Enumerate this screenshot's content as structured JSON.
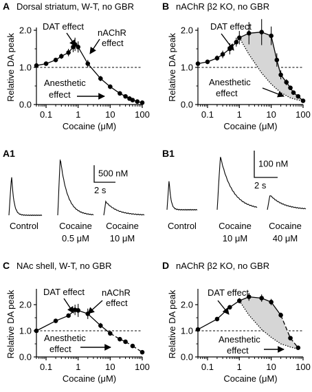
{
  "chart_data": [
    {
      "id": "A",
      "type": "line",
      "panel_label": "A",
      "title": "Dorsal striatum, W-T, no GBR",
      "xlabel": "Cocaine (μM)",
      "ylabel": "Relative DA peak",
      "x_scale": "log",
      "xlim": [
        0.05,
        100
      ],
      "ylim": [
        0,
        2.0
      ],
      "x_ticks": [
        0.1,
        1,
        10,
        100
      ],
      "x_tick_labels": [
        "0.1",
        "1",
        "10",
        "100"
      ],
      "y_ticks": [
        0,
        1.0,
        2.0
      ],
      "y_tick_labels": [
        "0.0",
        "1.0",
        "2.0"
      ],
      "reference_line": 1.0,
      "series": [
        {
          "x": [
            0.05,
            0.1,
            0.2,
            0.3,
            0.5,
            0.7,
            0.8,
            1,
            2,
            5,
            10,
            20,
            30,
            40,
            50,
            70,
            100
          ],
          "y": [
            1.05,
            1.1,
            1.2,
            1.3,
            1.4,
            1.55,
            1.62,
            1.55,
            1.1,
            0.7,
            0.48,
            0.3,
            0.22,
            0.16,
            0.12,
            0.08,
            0.05
          ],
          "err": [
            0.04,
            0.05,
            0.06,
            0.07,
            0.1,
            0.14,
            0.18,
            0.15,
            0.1,
            0.07,
            0.06,
            0.04,
            0.03,
            0.03,
            0.02,
            0.02,
            0.02
          ]
        }
      ],
      "annotations": [
        "DAT effect",
        "nAChR effect",
        "Anesthetic effect"
      ]
    },
    {
      "id": "B",
      "type": "line",
      "panel_label": "B",
      "title": "nAChR β2 KO, no GBR",
      "xlabel": "Cocaine (μM)",
      "ylabel": "Relative DA peak",
      "x_scale": "log",
      "xlim": [
        0.05,
        100
      ],
      "ylim": [
        0,
        2.0
      ],
      "x_ticks": [
        0.1,
        1,
        10,
        100
      ],
      "x_tick_labels": [
        "0.1",
        "1",
        "10",
        "100"
      ],
      "y_ticks": [
        0,
        1.0,
        2.0
      ],
      "y_tick_labels": [
        "0.0",
        "1.0",
        "2.0"
      ],
      "reference_line": 1.0,
      "series": [
        {
          "x": [
            0.05,
            0.1,
            0.2,
            0.3,
            0.5,
            0.8,
            1,
            2,
            5,
            10,
            15,
            20,
            30,
            40,
            50,
            70,
            100
          ],
          "y": [
            1.1,
            1.15,
            1.25,
            1.35,
            1.5,
            1.68,
            1.8,
            1.92,
            1.95,
            1.85,
            1.2,
            0.8,
            0.6,
            0.45,
            0.32,
            0.22,
            0.1
          ],
          "err": [
            0.05,
            0.06,
            0.07,
            0.1,
            0.15,
            0.12,
            0.18,
            0.3,
            0.35,
            0.25,
            0.18,
            0.12,
            0.08,
            0.06,
            0.05,
            0.04,
            0.03
          ]
        }
      ],
      "shaded_lower_bound": {
        "x": [
          1,
          2,
          5,
          10,
          20,
          40,
          70,
          100
        ],
        "y": [
          1.8,
          1.35,
          0.85,
          0.55,
          0.32,
          0.18,
          0.12,
          0.1
        ]
      },
      "annotations": [
        "DAT effect",
        "Anesthetic effect"
      ]
    },
    {
      "id": "A1",
      "type": "line",
      "panel_label": "A1",
      "traces": [
        {
          "label": [
            "Control"
          ],
          "peak_nM": 1180
        },
        {
          "label": [
            "Cocaine",
            "0.5 μM"
          ],
          "peak_nM": 1700
        },
        {
          "label": [
            "Cocaine",
            "10 μM"
          ],
          "peak_nM": 400
        }
      ],
      "scale_bar": {
        "y_label": "500 nM",
        "x_label": "2 s"
      }
    },
    {
      "id": "B1",
      "type": "line",
      "panel_label": "B1",
      "traces": [
        {
          "label": [
            "Control"
          ],
          "peak_nM": 112
        },
        {
          "label": [
            "Cocaine",
            "10 μM"
          ],
          "peak_nM": 200
        },
        {
          "label": [
            "Cocaine",
            "40 μM"
          ],
          "peak_nM": 55
        }
      ],
      "scale_bar": {
        "y_label": "100 nM",
        "x_label": "2 s"
      }
    },
    {
      "id": "C",
      "type": "line",
      "panel_label": "C",
      "title": "NAc shell, W-T, no GBR",
      "xlabel": "Cocaine (μM)",
      "ylabel": "Relative DA peak",
      "x_scale": "log",
      "xlim": [
        0.05,
        100
      ],
      "ylim": [
        0,
        2.5
      ],
      "x_ticks": [
        0.1,
        1,
        10,
        100
      ],
      "x_tick_labels": [
        "0.1",
        "1",
        "10",
        "100"
      ],
      "y_ticks": [
        0,
        1.0,
        2.0
      ],
      "y_tick_labels": [
        "0.0",
        "1.0",
        "2.0"
      ],
      "reference_line": 1.0,
      "series": [
        {
          "x": [
            0.05,
            0.2,
            0.5,
            0.8,
            1,
            2,
            5,
            10,
            20,
            30,
            50,
            100
          ],
          "y": [
            1.0,
            1.38,
            1.58,
            1.8,
            1.78,
            1.65,
            1.2,
            0.9,
            0.68,
            0.58,
            0.42,
            0.18
          ],
          "err": [
            0.03,
            0.04,
            0.06,
            0.2,
            0.25,
            0.2,
            0.1,
            0.06,
            0.05,
            0.04,
            0.04,
            0.03
          ]
        }
      ],
      "annotations": [
        "DAT effect",
        "nAChR effect",
        "Anesthetic effect"
      ]
    },
    {
      "id": "D",
      "type": "line",
      "panel_label": "D",
      "title": "nAChR β2 KO, no GBR",
      "xlabel": "Cocaine (μM)",
      "ylabel": "Relative DA peak",
      "x_scale": "log",
      "xlim": [
        0.05,
        100
      ],
      "ylim": [
        0,
        2.5
      ],
      "x_ticks": [
        0.1,
        1,
        10,
        100
      ],
      "x_tick_labels": [
        "0.1",
        "1",
        "10",
        "100"
      ],
      "y_ticks": [
        0,
        1.0,
        2.0
      ],
      "y_tick_labels": [
        "0.0",
        "1.0",
        "2.0"
      ],
      "reference_line": 1.0,
      "series": [
        {
          "x": [
            0.05,
            0.2,
            0.5,
            1,
            2,
            5,
            10,
            20,
            40,
            70
          ],
          "y": [
            1.05,
            1.45,
            1.9,
            2.15,
            2.3,
            2.25,
            2.1,
            1.6,
            0.72,
            0.35
          ],
          "err": [
            0.05,
            0.05,
            0.08,
            0.1,
            0.15,
            0.14,
            0.12,
            0.1,
            0.06,
            0.04
          ]
        }
      ],
      "shaded_lower_bound": {
        "x": [
          1,
          2,
          5,
          10,
          20,
          40,
          70
        ],
        "y": [
          2.15,
          1.6,
          1.05,
          0.75,
          0.5,
          0.38,
          0.3
        ]
      },
      "annotations": [
        "DAT effect",
        "Anesthetic effect"
      ]
    }
  ]
}
